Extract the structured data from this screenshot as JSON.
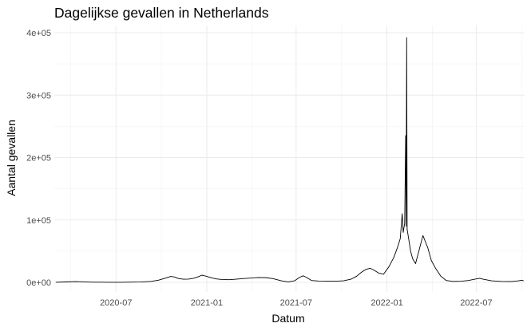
{
  "chart_data": {
    "type": "line",
    "title": "Dagelijkse gevallen in Netherlands",
    "xlabel": "Datum",
    "ylabel": "Aantal gevallen",
    "x_ticks": [
      {
        "label": "2020-07",
        "date": "2020-07-01"
      },
      {
        "label": "2021-01",
        "date": "2021-01-01"
      },
      {
        "label": "2021-07",
        "date": "2021-07-01"
      },
      {
        "label": "2022-01",
        "date": "2022-01-01"
      },
      {
        "label": "2022-07",
        "date": "2022-07-01"
      }
    ],
    "y_ticks": [
      {
        "label": "0e+00",
        "value": 0
      },
      {
        "label": "1e+05",
        "value": 100000
      },
      {
        "label": "2e+05",
        "value": 200000
      },
      {
        "label": "3e+05",
        "value": 300000
      },
      {
        "label": "4e+05",
        "value": 400000
      }
    ],
    "xlim": [
      "2020-02-27",
      "2022-10-07"
    ],
    "ylim": [
      0,
      400000
    ],
    "grid": true,
    "line_color": "#000000",
    "series": [
      {
        "points": [
          [
            "2020-03-01",
            100
          ],
          [
            "2020-03-25",
            800
          ],
          [
            "2020-04-10",
            1200
          ],
          [
            "2020-04-25",
            900
          ],
          [
            "2020-05-15",
            300
          ],
          [
            "2020-06-15",
            100
          ],
          [
            "2020-07-15",
            100
          ],
          [
            "2020-08-01",
            400
          ],
          [
            "2020-08-20",
            600
          ],
          [
            "2020-09-10",
            1500
          ],
          [
            "2020-09-25",
            3500
          ],
          [
            "2020-10-10",
            7000
          ],
          [
            "2020-10-20",
            9500
          ],
          [
            "2020-10-28",
            8500
          ],
          [
            "2020-11-05",
            6000
          ],
          [
            "2020-11-15",
            5000
          ],
          [
            "2020-11-25",
            5200
          ],
          [
            "2020-12-05",
            6500
          ],
          [
            "2020-12-15",
            9000
          ],
          [
            "2020-12-22",
            11500
          ],
          [
            "2020-12-30",
            10000
          ],
          [
            "2021-01-10",
            7500
          ],
          [
            "2021-01-20",
            5500
          ],
          [
            "2021-02-01",
            4500
          ],
          [
            "2021-02-15",
            4200
          ],
          [
            "2021-03-01",
            5000
          ],
          [
            "2021-03-15",
            6000
          ],
          [
            "2021-04-01",
            7000
          ],
          [
            "2021-04-15",
            7800
          ],
          [
            "2021-05-01",
            7500
          ],
          [
            "2021-05-15",
            6000
          ],
          [
            "2021-06-01",
            2500
          ],
          [
            "2021-06-15",
            700
          ],
          [
            "2021-06-28",
            2500
          ],
          [
            "2021-07-08",
            8000
          ],
          [
            "2021-07-15",
            10500
          ],
          [
            "2021-07-22",
            8000
          ],
          [
            "2021-08-01",
            3000
          ],
          [
            "2021-08-15",
            2200
          ],
          [
            "2021-09-01",
            2000
          ],
          [
            "2021-09-20",
            1800
          ],
          [
            "2021-10-05",
            2500
          ],
          [
            "2021-10-20",
            5000
          ],
          [
            "2021-11-01",
            10000
          ],
          [
            "2021-11-10",
            16000
          ],
          [
            "2021-11-20",
            21000
          ],
          [
            "2021-11-28",
            22500
          ],
          [
            "2021-12-05",
            20000
          ],
          [
            "2021-12-15",
            15000
          ],
          [
            "2021-12-25",
            13000
          ],
          [
            "2022-01-05",
            25000
          ],
          [
            "2022-01-15",
            40000
          ],
          [
            "2022-01-22",
            55000
          ],
          [
            "2022-01-28",
            70000
          ],
          [
            "2022-02-01",
            110000
          ],
          [
            "2022-02-03",
            80000
          ],
          [
            "2022-02-06",
            95000
          ],
          [
            "2022-02-08",
            235000
          ],
          [
            "2022-02-09",
            90000
          ],
          [
            "2022-02-10",
            392000
          ],
          [
            "2022-02-11",
            85000
          ],
          [
            "2022-02-14",
            70000
          ],
          [
            "2022-02-18",
            50000
          ],
          [
            "2022-02-22",
            38000
          ],
          [
            "2022-02-28",
            30000
          ],
          [
            "2022-03-05",
            45000
          ],
          [
            "2022-03-10",
            60000
          ],
          [
            "2022-03-15",
            75000
          ],
          [
            "2022-03-20",
            65000
          ],
          [
            "2022-03-25",
            55000
          ],
          [
            "2022-04-01",
            35000
          ],
          [
            "2022-04-10",
            22000
          ],
          [
            "2022-04-20",
            10000
          ],
          [
            "2022-05-01",
            3000
          ],
          [
            "2022-05-15",
            1500
          ],
          [
            "2022-06-01",
            1800
          ],
          [
            "2022-06-15",
            3000
          ],
          [
            "2022-07-01",
            5500
          ],
          [
            "2022-07-08",
            6500
          ],
          [
            "2022-07-15",
            5000
          ],
          [
            "2022-08-01",
            2500
          ],
          [
            "2022-08-20",
            1500
          ],
          [
            "2022-09-10",
            1300
          ],
          [
            "2022-09-25",
            2500
          ],
          [
            "2022-10-01",
            3500
          ],
          [
            "2022-10-05",
            2500
          ]
        ]
      }
    ]
  }
}
